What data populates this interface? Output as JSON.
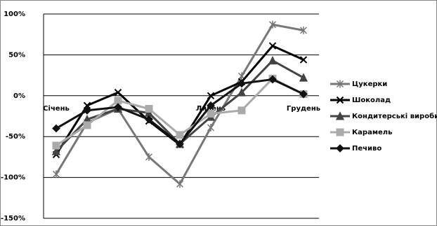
{
  "chart_data": {
    "type": "line",
    "categories": [
      "Січень",
      null,
      null,
      null,
      null,
      "Липень",
      null,
      null,
      "Грудень"
    ],
    "ylim": [
      -150,
      100
    ],
    "yticks": [
      {
        "value": -150,
        "label": "-150%"
      },
      {
        "value": -100,
        "label": "-100%"
      },
      {
        "value": -50,
        "label": "-50%"
      },
      {
        "value": 0,
        "label": "0%"
      },
      {
        "value": 50,
        "label": "50%"
      },
      {
        "value": 100,
        "label": "100%"
      }
    ],
    "grid": true,
    "legend": "right",
    "series": [
      {
        "name": "Цукерки",
        "color": "#777777",
        "marker": "asterisk",
        "values": [
          -96,
          -33,
          -16,
          -75,
          -108,
          -39,
          24,
          87,
          80
        ]
      },
      {
        "name": "Шоколад",
        "color": "#000000",
        "marker": "x",
        "values": [
          -72,
          -12,
          4,
          -31,
          -60,
          0,
          17,
          61,
          44
        ]
      },
      {
        "name": "Кондитерські вироби",
        "color": "#444444",
        "marker": "triangle",
        "values": [
          -68,
          -29,
          -16,
          -21,
          -59,
          -26,
          4,
          43,
          22
        ]
      },
      {
        "name": "Карамель",
        "color": "#aaaaaa",
        "marker": "square",
        "values": [
          -61,
          -36,
          -6,
          -16,
          -48,
          -22,
          -18,
          21,
          2
        ]
      },
      {
        "name": "Печиво",
        "color": "#111111",
        "marker": "diamond",
        "values": [
          -40,
          -18,
          -14,
          -29,
          -59,
          -12,
          15,
          20,
          2
        ]
      }
    ]
  }
}
